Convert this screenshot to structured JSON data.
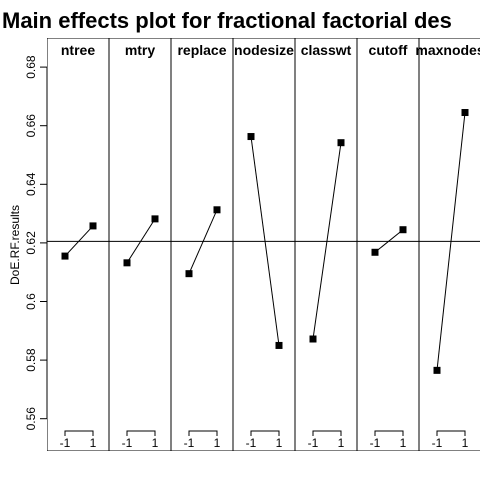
{
  "chart_data": {
    "type": "line",
    "title": "Main effects plot for fractional factorial des",
    "ylabel": "DoE.RF.results",
    "ylim": [
      0.55,
      0.695
    ],
    "yticks": [
      "0.56",
      "0.58",
      "0.6",
      "0.62",
      "0.64",
      "0.66",
      "0.68"
    ],
    "yticks_values": [
      0.56,
      0.58,
      0.6,
      0.62,
      0.64,
      0.66,
      0.68
    ],
    "levels": [
      "-1",
      "1"
    ],
    "grand_mean": 0.6205,
    "factors": [
      {
        "name": "ntree",
        "values": [
          0.6155,
          0.6258
        ]
      },
      {
        "name": "mtry",
        "values": [
          0.6132,
          0.6282
        ]
      },
      {
        "name": "replace",
        "values": [
          0.6095,
          0.6313
        ]
      },
      {
        "name": "nodesize",
        "values": [
          0.6563,
          0.585
        ]
      },
      {
        "name": "classwt",
        "values": [
          0.5872,
          0.6542
        ]
      },
      {
        "name": "cutoff",
        "values": [
          0.6168,
          0.6245
        ]
      },
      {
        "name": "maxnodes",
        "values": [
          0.5765,
          0.6645
        ]
      }
    ],
    "grid": false
  }
}
